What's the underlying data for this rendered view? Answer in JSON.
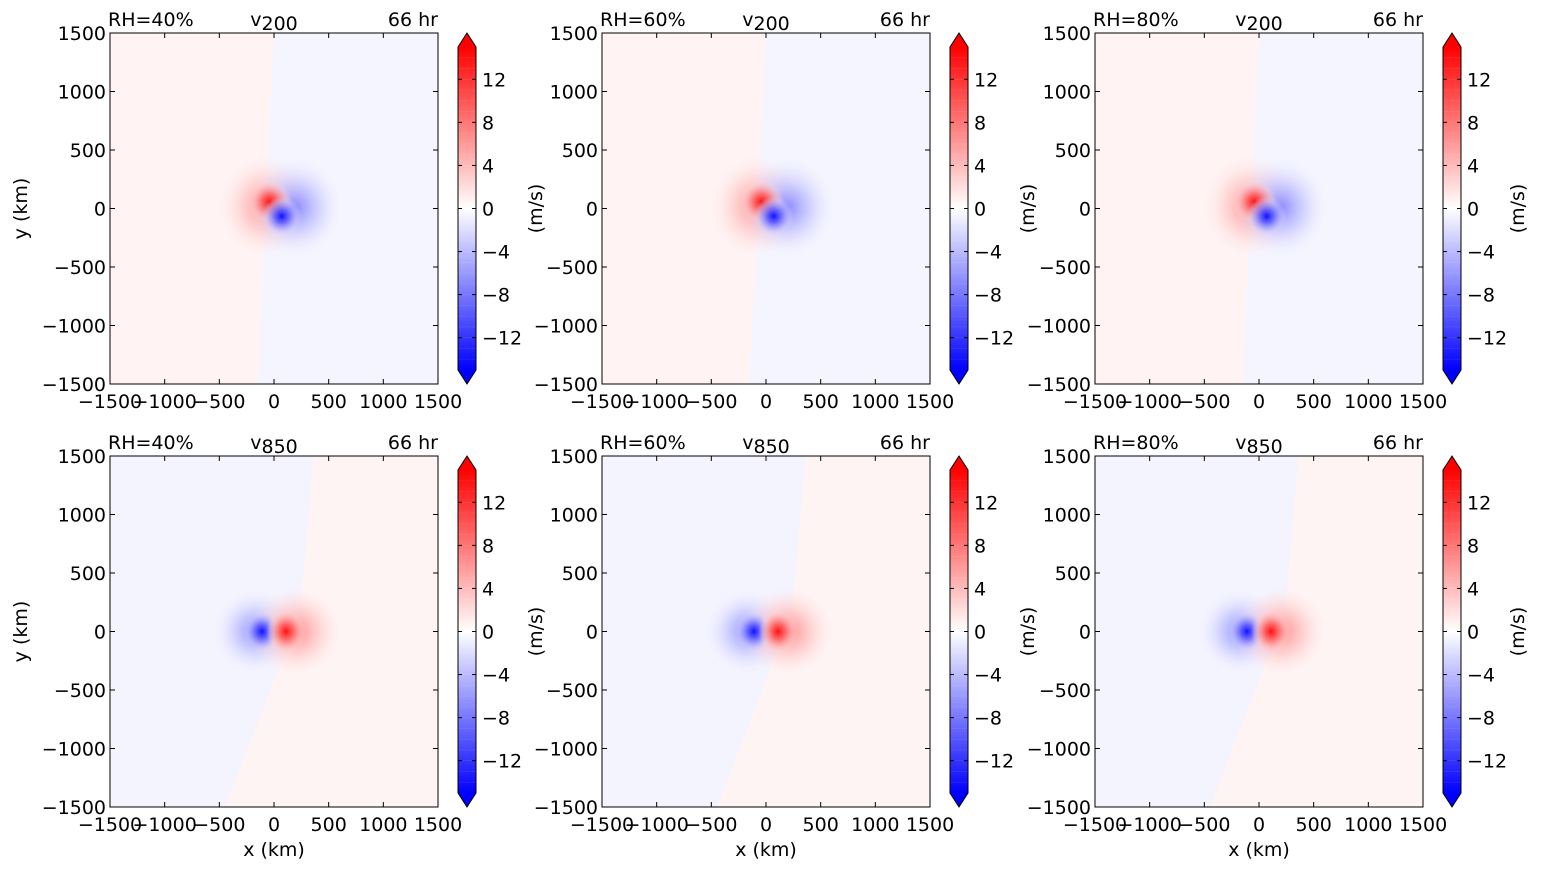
{
  "chart_data": {
    "type": "heatmap",
    "x_tick_labels": [
      "−1500",
      "−1000",
      "−500",
      "0",
      "500",
      "1000",
      "1500"
    ],
    "y_tick_labels": [
      "1500",
      "1000",
      "500",
      "0",
      "−500",
      "−1000",
      "−1500"
    ],
    "x_ticks": [
      -1500,
      -1000,
      -500,
      0,
      500,
      1000,
      1500
    ],
    "y_ticks": [
      1500,
      1000,
      500,
      0,
      -500,
      -1000,
      -1500
    ],
    "xlim": [
      -1500,
      1500
    ],
    "ylim": [
      -1500,
      1500
    ],
    "xlabel": "x (km)",
    "ylabel": "y (km)",
    "colorbar": {
      "label": "(m/s)",
      "tick_labels": [
        "12",
        "8",
        "4",
        "0",
        "−4",
        "−8",
        "−12"
      ],
      "ticks": [
        12,
        8,
        4,
        0,
        -4,
        -8,
        -12
      ],
      "range": [
        -15,
        15
      ],
      "extend": "both",
      "low_color": "#0000ff",
      "high_color": "#ff0000",
      "mid_color": "#ffffff"
    },
    "panels": [
      {
        "rh": "RH=40%",
        "var": "v",
        "level": "200",
        "time": "66 hr"
      },
      {
        "rh": "RH=60%",
        "var": "v",
        "level": "200",
        "time": "66 hr"
      },
      {
        "rh": "RH=80%",
        "var": "v",
        "level": "200",
        "time": "66 hr"
      },
      {
        "rh": "RH=40%",
        "var": "v",
        "level": "850",
        "time": "66 hr"
      },
      {
        "rh": "RH=60%",
        "var": "v",
        "level": "850",
        "time": "66 hr"
      },
      {
        "rh": "RH=80%",
        "var": "v",
        "level": "850",
        "time": "66 hr"
      }
    ]
  }
}
